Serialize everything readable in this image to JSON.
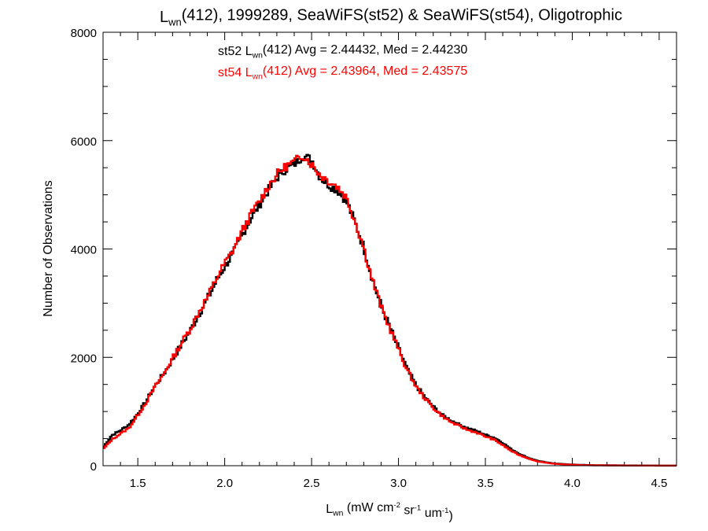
{
  "chart_data": {
    "type": "line",
    "title": {
      "parts": [
        {
          "text": "L",
          "sub": false
        },
        {
          "text": "wn",
          "sub": true
        },
        {
          "text": "(412), 1999289, SeaWiFS(st52) & SeaWiFS(st54), Oligotrophic",
          "sub": false
        }
      ]
    },
    "xlabel": {
      "parts": [
        {
          "text": "L",
          "style": "normal"
        },
        {
          "text": "wn",
          "style": "sub"
        },
        {
          "text": " (mW cm",
          "style": "normal"
        },
        {
          "text": "-2",
          "style": "sup"
        },
        {
          "text": " sr",
          "style": "normal"
        },
        {
          "text": "-1",
          "style": "sup"
        },
        {
          "text": " um",
          "style": "normal"
        },
        {
          "text": "-1",
          "style": "sup"
        },
        {
          "text": ")",
          "style": "normal"
        }
      ]
    },
    "ylabel": "Number of Observations",
    "xlim": [
      1.3,
      4.6
    ],
    "ylim": [
      0,
      8000
    ],
    "xticks": [
      1.5,
      2.0,
      2.5,
      3.0,
      3.5,
      4.0,
      4.5
    ],
    "xtick_labels": [
      "1.5",
      "2.0",
      "2.5",
      "3.0",
      "3.5",
      "4.0",
      "4.5"
    ],
    "yticks": [
      0,
      2000,
      4000,
      6000,
      8000
    ],
    "ytick_labels": [
      "0",
      "2000",
      "4000",
      "6000",
      "8000"
    ],
    "grid": false,
    "bin_width": 0.01,
    "series": [
      {
        "name": "st52",
        "color": "#000000",
        "stats": {
          "parts": [
            {
              "text": "st52 L",
              "sub": false
            },
            {
              "text": "wn",
              "sub": true
            },
            {
              "text": "(412) Avg = 2.44432, Med = 2.44230",
              "sub": false
            }
          ]
        },
        "x": [
          1.3,
          1.35,
          1.4,
          1.45,
          1.5,
          1.55,
          1.6,
          1.65,
          1.7,
          1.75,
          1.8,
          1.85,
          1.9,
          1.95,
          2.0,
          2.05,
          2.1,
          2.15,
          2.2,
          2.25,
          2.3,
          2.35,
          2.4,
          2.45,
          2.5,
          2.55,
          2.6,
          2.65,
          2.7,
          2.75,
          2.8,
          2.85,
          2.9,
          2.95,
          3.0,
          3.05,
          3.1,
          3.15,
          3.2,
          3.25,
          3.3,
          3.35,
          3.4,
          3.45,
          3.5,
          3.55,
          3.6,
          3.65,
          3.7,
          3.75,
          3.8,
          3.85,
          3.9,
          3.95,
          4.0,
          4.05,
          4.1,
          4.2,
          4.3,
          4.4,
          4.5,
          4.6
        ],
        "y": [
          330,
          560,
          650,
          760,
          960,
          1200,
          1480,
          1700,
          1960,
          2230,
          2480,
          2790,
          3070,
          3400,
          3680,
          3920,
          4260,
          4560,
          4820,
          5080,
          5310,
          5470,
          5560,
          5720,
          5650,
          5320,
          5180,
          5080,
          4890,
          4490,
          4030,
          3450,
          2950,
          2560,
          2170,
          1780,
          1490,
          1270,
          1090,
          940,
          840,
          760,
          690,
          640,
          570,
          520,
          420,
          300,
          210,
          140,
          90,
          60,
          40,
          30,
          20,
          15,
          10,
          8,
          5,
          3,
          2,
          1
        ]
      },
      {
        "name": "st54",
        "color": "#ff0000",
        "stats": {
          "parts": [
            {
              "text": "st54 L",
              "sub": false
            },
            {
              "text": "wn",
              "sub": true
            },
            {
              "text": "(412) Avg = 2.43964, Med = 2.43575",
              "sub": false
            }
          ]
        },
        "x": [
          1.3,
          1.35,
          1.4,
          1.45,
          1.5,
          1.55,
          1.6,
          1.65,
          1.7,
          1.75,
          1.8,
          1.85,
          1.9,
          1.95,
          2.0,
          2.05,
          2.1,
          2.15,
          2.2,
          2.25,
          2.3,
          2.35,
          2.4,
          2.45,
          2.5,
          2.55,
          2.6,
          2.65,
          2.7,
          2.75,
          2.8,
          2.85,
          2.9,
          2.95,
          3.0,
          3.05,
          3.1,
          3.15,
          3.2,
          3.25,
          3.3,
          3.35,
          3.4,
          3.45,
          3.5,
          3.55,
          3.6,
          3.65,
          3.7,
          3.75,
          3.8,
          3.85,
          3.9,
          3.95,
          4.0,
          4.05,
          4.1,
          4.2,
          4.3,
          4.4,
          4.5,
          4.6
        ],
        "y": [
          300,
          480,
          590,
          700,
          930,
          1180,
          1460,
          1700,
          1980,
          2260,
          2520,
          2830,
          3100,
          3440,
          3730,
          3990,
          4330,
          4630,
          4880,
          5150,
          5380,
          5520,
          5610,
          5740,
          5560,
          5370,
          5250,
          5150,
          4950,
          4520,
          4020,
          3430,
          2930,
          2540,
          2150,
          1760,
          1470,
          1250,
          1070,
          920,
          810,
          730,
          660,
          610,
          540,
          480,
          380,
          270,
          190,
          130,
          80,
          55,
          35,
          25,
          18,
          12,
          8,
          6,
          4,
          2,
          1,
          1
        ]
      }
    ]
  }
}
